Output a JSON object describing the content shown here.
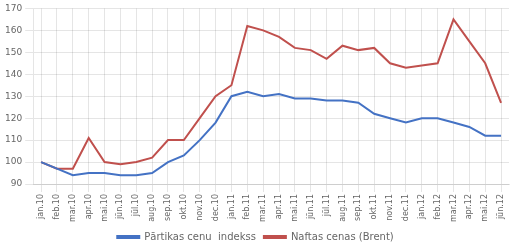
{
  "chart_data": {
    "type": "line",
    "categories": [
      "jan.10",
      "feb.10",
      "mar.10",
      "apr.10",
      "mai.10",
      "jūn.10",
      "jūl.10",
      "aug.10",
      "sep.10",
      "okt.10",
      "nov.10",
      "dec.10",
      "jan.11",
      "feb.11",
      "mar.11",
      "apr.11",
      "mai.11",
      "jūn.11",
      "jūl.11",
      "aug.11",
      "sep.11",
      "okt.11",
      "nov.11",
      "dec.11",
      "jan.12",
      "feb.12",
      "mar.12",
      "apr.12",
      "mai.12",
      "jūn.12"
    ],
    "series": [
      {
        "name": "Pārtikas cenu  indekss",
        "color": "#4472C4",
        "values": [
          100,
          97,
          94,
          95,
          95,
          94,
          94,
          95,
          100,
          103,
          110,
          118,
          130,
          132,
          130,
          131,
          129,
          129,
          128,
          128,
          127,
          122,
          120,
          118,
          120,
          120,
          118,
          116,
          112,
          112
        ]
      },
      {
        "name": "Naftas cenas (Brent)",
        "color": "#C0504D",
        "values": [
          100,
          97,
          97,
          111,
          100,
          99,
          100,
          102,
          110,
          110,
          120,
          130,
          135,
          162,
          160,
          157,
          152,
          151,
          147,
          153,
          151,
          152,
          145,
          143,
          144,
          145,
          165,
          155,
          145,
          127
        ]
      }
    ],
    "ylim": [
      90,
      170
    ],
    "yticks": [
      90,
      100,
      110,
      120,
      130,
      140,
      150,
      160,
      170
    ],
    "grid": true,
    "legend": "bottom"
  }
}
